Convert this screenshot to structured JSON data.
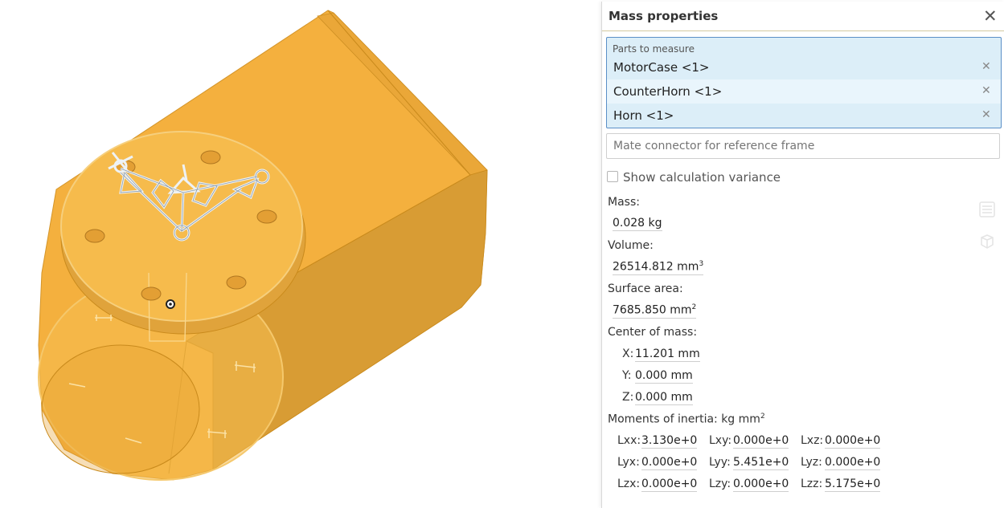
{
  "panel": {
    "title": "Mass properties",
    "close_icon": "close-icon",
    "parts_label": "Parts to measure",
    "parts": [
      {
        "name": "MotorCase <1>"
      },
      {
        "name": "CounterHorn <1>"
      },
      {
        "name": "Horn <1>"
      }
    ],
    "mate_placeholder": "Mate connector for reference frame",
    "variance_label": "Show calculation variance",
    "mass_label": "Mass:",
    "mass_value": "0.028 kg",
    "volume_label": "Volume:",
    "volume_value": "26514.812 mm",
    "volume_exp": "3",
    "surface_label": "Surface area:",
    "surface_value": "7685.850 mm",
    "surface_exp": "2",
    "com_label": "Center of mass:",
    "com": {
      "x_label": "X:",
      "x_value": "11.201 mm",
      "y_label": "Y:",
      "y_value": "0.000 mm",
      "z_label": "Z:",
      "z_value": "0.000 mm"
    },
    "moi_label": "Moments of inertia: kg mm",
    "moi_exp": "2",
    "moi": [
      [
        {
          "label": "Lxx:",
          "value": "3.130e+0"
        },
        {
          "label": "Lxy:",
          "value": "0.000e+0"
        },
        {
          "label": "Lxz:",
          "value": "0.000e+0"
        }
      ],
      [
        {
          "label": "Lyx:",
          "value": "0.000e+0"
        },
        {
          "label": "Lyy:",
          "value": "5.451e+0"
        },
        {
          "label": "Lyz:",
          "value": "0.000e+0"
        }
      ],
      [
        {
          "label": "Lzx:",
          "value": "0.000e+0"
        },
        {
          "label": "Lzy:",
          "value": "0.000e+0"
        },
        {
          "label": "Lzz:",
          "value": "5.175e+0"
        }
      ]
    ]
  },
  "colors": {
    "part_fill": "#f4b03e",
    "part_shade": "#d99f33",
    "part_edge": "#c98a1c",
    "selected_bg": "#dceef8",
    "selected_border": "#5a8fc7"
  }
}
